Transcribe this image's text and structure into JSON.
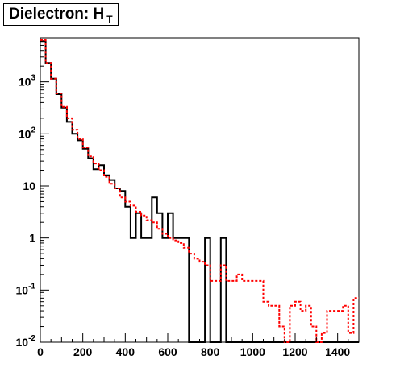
{
  "title": {
    "main": "Dielectron: H",
    "subscript": "T"
  },
  "chart_data": {
    "type": "step-histogram",
    "title": "Dielectron: H_T",
    "xlabel": "",
    "ylabel": "",
    "xlim": [
      0,
      1500
    ],
    "ylim": [
      0.01,
      7000
    ],
    "y_scale": "log",
    "grid": false,
    "legend": "none",
    "x_ticks": [
      0,
      200,
      400,
      600,
      800,
      1000,
      1200,
      1400
    ],
    "y_ticks": [
      {
        "value": 0.01,
        "mantissa": "10",
        "exp": "-2"
      },
      {
        "value": 0.1,
        "mantissa": "10",
        "exp": "-1"
      },
      {
        "value": 1,
        "mantissa": "1",
        "exp": ""
      },
      {
        "value": 10,
        "mantissa": "10",
        "exp": ""
      },
      {
        "value": 100,
        "mantissa": "10",
        "exp": "2"
      },
      {
        "value": 1000,
        "mantissa": "10",
        "exp": "3"
      }
    ],
    "bin_width": 25,
    "series": [
      {
        "style": "solid",
        "color": "#000000",
        "values": [
          6000,
          2300,
          1150,
          580,
          320,
          170,
          100,
          75,
          52,
          34,
          21,
          25,
          16,
          13,
          9,
          8,
          4,
          1,
          3,
          1,
          1,
          6,
          3,
          1,
          3,
          1,
          1,
          1,
          0,
          0,
          0,
          1,
          0,
          0,
          1,
          0,
          0,
          0,
          0,
          0,
          0,
          0,
          0,
          0,
          0,
          0,
          0,
          0,
          0,
          0,
          0,
          0,
          0,
          0,
          0,
          0,
          0,
          0,
          0,
          0
        ]
      },
      {
        "style": "dotted",
        "color": "#ff0000",
        "values": [
          6300,
          2300,
          1150,
          600,
          330,
          200,
          120,
          80,
          55,
          37,
          27,
          20,
          15,
          11,
          9,
          6,
          5,
          4.2,
          3.2,
          2.7,
          2.2,
          2,
          1.5,
          1.2,
          1,
          0.9,
          0.8,
          0.65,
          0.5,
          0.4,
          0.35,
          0.3,
          0.15,
          0.15,
          0.3,
          0.15,
          0.15,
          0.2,
          0.15,
          0.15,
          0.15,
          0.15,
          0.06,
          0.05,
          0.05,
          0.02,
          0,
          0.05,
          0.06,
          0.04,
          0.05,
          0.02,
          0,
          0.015,
          0.04,
          0.04,
          0.04,
          0.05,
          0.015,
          0.07
        ]
      }
    ]
  }
}
